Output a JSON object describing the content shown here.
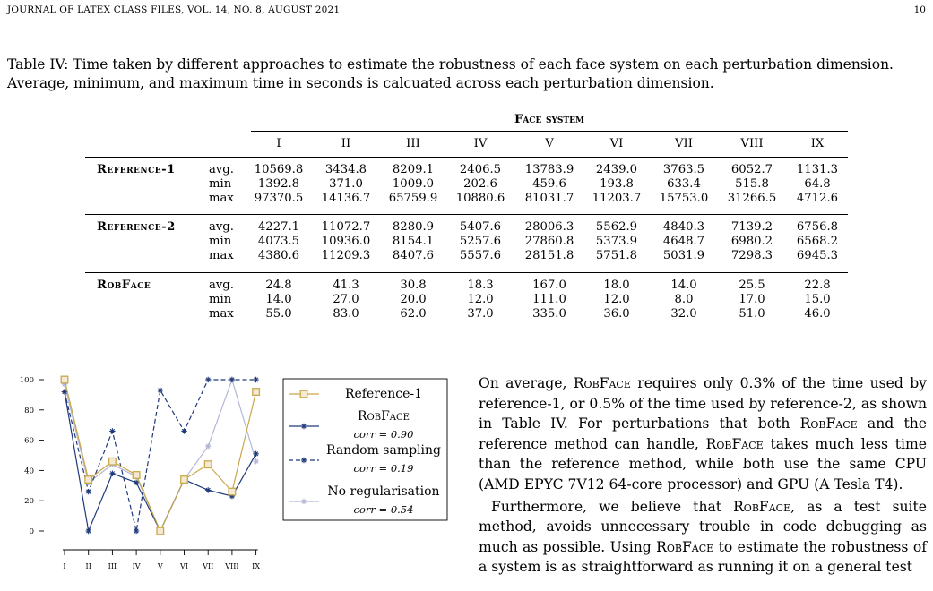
{
  "header": {
    "journal": "JOURNAL OF LATEX CLASS FILES, VOL. 14, NO. 8, AUGUST 2021",
    "page_number": "10"
  },
  "table": {
    "caption": "Table IV: Time taken by different approaches to estimate the robustness of each face system on each perturbation dimension. Average, minimum, and maximum time in seconds is calcuated across each perturbation dimension.",
    "group_header": "Face system",
    "columns": [
      "I",
      "II",
      "III",
      "IV",
      "V",
      "VI",
      "VII",
      "VIII",
      "IX"
    ],
    "stat_labels": [
      "avg.",
      "min",
      "max"
    ],
    "groups": [
      {
        "name": "Reference-1",
        "rows": [
          [
            "10569.8",
            "3434.8",
            "8209.1",
            "2406.5",
            "13783.9",
            "2439.0",
            "3763.5",
            "6052.7",
            "1131.3"
          ],
          [
            "1392.8",
            "371.0",
            "1009.0",
            "202.6",
            "459.6",
            "193.8",
            "633.4",
            "515.8",
            "64.8"
          ],
          [
            "97370.5",
            "14136.7",
            "65759.9",
            "10880.6",
            "81031.7",
            "11203.7",
            "15753.0",
            "31266.5",
            "4712.6"
          ]
        ]
      },
      {
        "name": "Reference-2",
        "rows": [
          [
            "4227.1",
            "11072.7",
            "8280.9",
            "5407.6",
            "28006.3",
            "5562.9",
            "4840.3",
            "7139.2",
            "6756.8"
          ],
          [
            "4073.5",
            "10936.0",
            "8154.1",
            "5257.6",
            "27860.8",
            "5373.9",
            "4648.7",
            "6980.2",
            "6568.2"
          ],
          [
            "4380.6",
            "11209.3",
            "8407.6",
            "5557.6",
            "28151.8",
            "5751.8",
            "5031.9",
            "7298.3",
            "6945.3"
          ]
        ]
      },
      {
        "name": "RobFace",
        "rows": [
          [
            "24.8",
            "41.3",
            "30.8",
            "18.3",
            "167.0",
            "18.0",
            "14.0",
            "25.5",
            "22.8"
          ],
          [
            "14.0",
            "27.0",
            "20.0",
            "12.0",
            "111.0",
            "12.0",
            "8.0",
            "17.0",
            "15.0"
          ],
          [
            "55.0",
            "83.0",
            "62.0",
            "37.0",
            "335.0",
            "36.0",
            "32.0",
            "51.0",
            "46.0"
          ]
        ]
      }
    ]
  },
  "chart_data": {
    "type": "line",
    "x": [
      "I",
      "II",
      "III",
      "IV",
      "V",
      "VI",
      "VII",
      "VIII",
      "IX"
    ],
    "underlined_x": [
      "VII",
      "VIII",
      "IX"
    ],
    "ylim": [
      0,
      100
    ],
    "yticks": [
      "0",
      "20",
      "40",
      "60",
      "80",
      "100"
    ],
    "series": [
      {
        "name": "Reference-1",
        "color": "#c9a84c",
        "dash": "solid",
        "marker": "square",
        "values": [
          100,
          34,
          46,
          37,
          0,
          34,
          44,
          26,
          92
        ]
      },
      {
        "name": "RobFace",
        "corr": "corr = 0.90",
        "color": "#1f3a7a",
        "dash": "solid",
        "marker": "star",
        "values": [
          92,
          0,
          38,
          32,
          0,
          34,
          27,
          23,
          51
        ]
      },
      {
        "name": "Random sampling",
        "corr": "corr = 0.19",
        "color": "#1f3a7a",
        "dash": "dashed",
        "marker": "star",
        "values": [
          92,
          26,
          66,
          0,
          93,
          66,
          100,
          100,
          100
        ]
      },
      {
        "name": "No regularisation",
        "corr": "corr = 0.54",
        "color": "#b3b7d6",
        "dash": "solid",
        "marker": "star",
        "values": [
          97,
          32,
          44,
          36,
          0,
          34,
          56,
          100,
          46
        ]
      }
    ]
  },
  "body": {
    "p1": [
      {
        "t": "On average, "
      },
      {
        "t": "RobFace",
        "sc": true
      },
      {
        "t": " requires only 0.3% of the time used by reference-1, or 0.5% of the time used by reference-2, as shown in Table IV. For perturbations that both "
      },
      {
        "t": "RobFace",
        "sc": true
      },
      {
        "t": " and the reference method can handle, "
      },
      {
        "t": "RobFace",
        "sc": true
      },
      {
        "t": " takes much less time than the reference method, while both use the same CPU (AMD EPYC 7V12 64-core processor) and GPU (A Tesla T4)."
      }
    ],
    "p2": [
      {
        "t": "Furthermore, we believe that "
      },
      {
        "t": "RobFace",
        "sc": true
      },
      {
        "t": ", as a test suite method, avoids unnecessary trouble in code debugging as much as possible. Using "
      },
      {
        "t": "RobFace",
        "sc": true
      },
      {
        "t": " to estimate the robustness of a system is as straightforward as running it on a general test"
      }
    ]
  }
}
